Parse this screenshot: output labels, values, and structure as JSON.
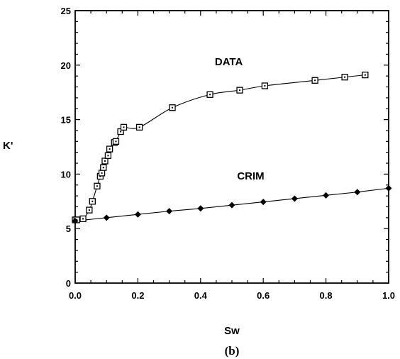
{
  "chart_data": {
    "type": "scatter",
    "xlabel": "Sw",
    "ylabel": "K'",
    "caption": "(b)",
    "xlim": [
      0.0,
      1.0
    ],
    "ylim": [
      0,
      25
    ],
    "x_ticks": [
      "0.0",
      "0.2",
      "0.4",
      "0.6",
      "0.8",
      "1.0"
    ],
    "y_ticks": [
      "0",
      "5",
      "10",
      "15",
      "20",
      "25"
    ],
    "x_minor_step": 0.05,
    "y_minor_step": 1,
    "grid": false,
    "series": [
      {
        "name": "DATA",
        "marker": "open-square",
        "line": "smooth",
        "points": [
          [
            0.0,
            5.8
          ],
          [
            0.005,
            5.8
          ],
          [
            0.025,
            5.9
          ],
          [
            0.045,
            6.7
          ],
          [
            0.055,
            7.5
          ],
          [
            0.07,
            8.9
          ],
          [
            0.08,
            9.8
          ],
          [
            0.085,
            10.1
          ],
          [
            0.09,
            10.6
          ],
          [
            0.095,
            11.2
          ],
          [
            0.105,
            11.7
          ],
          [
            0.11,
            12.3
          ],
          [
            0.125,
            12.9
          ],
          [
            0.13,
            13.0
          ],
          [
            0.145,
            13.9
          ],
          [
            0.155,
            14.3
          ],
          [
            0.205,
            14.3
          ],
          [
            0.31,
            16.1
          ],
          [
            0.43,
            17.3
          ],
          [
            0.525,
            17.7
          ],
          [
            0.605,
            18.1
          ],
          [
            0.765,
            18.6
          ],
          [
            0.86,
            18.9
          ],
          [
            0.925,
            19.1
          ]
        ]
      },
      {
        "name": "CRIM",
        "marker": "filled-diamond",
        "line": "straight",
        "points": [
          [
            0.0,
            5.7
          ],
          [
            0.1,
            6.0
          ],
          [
            0.2,
            6.3
          ],
          [
            0.3,
            6.6
          ],
          [
            0.4,
            6.85
          ],
          [
            0.5,
            7.15
          ],
          [
            0.6,
            7.45
          ],
          [
            0.7,
            7.75
          ],
          [
            0.8,
            8.05
          ],
          [
            0.9,
            8.35
          ],
          [
            1.0,
            8.7
          ]
        ]
      }
    ],
    "annotations": [
      {
        "text": "DATA",
        "x": 0.49,
        "y": 20.0
      },
      {
        "text": "CRIM",
        "x": 0.56,
        "y": 9.5
      }
    ]
  }
}
